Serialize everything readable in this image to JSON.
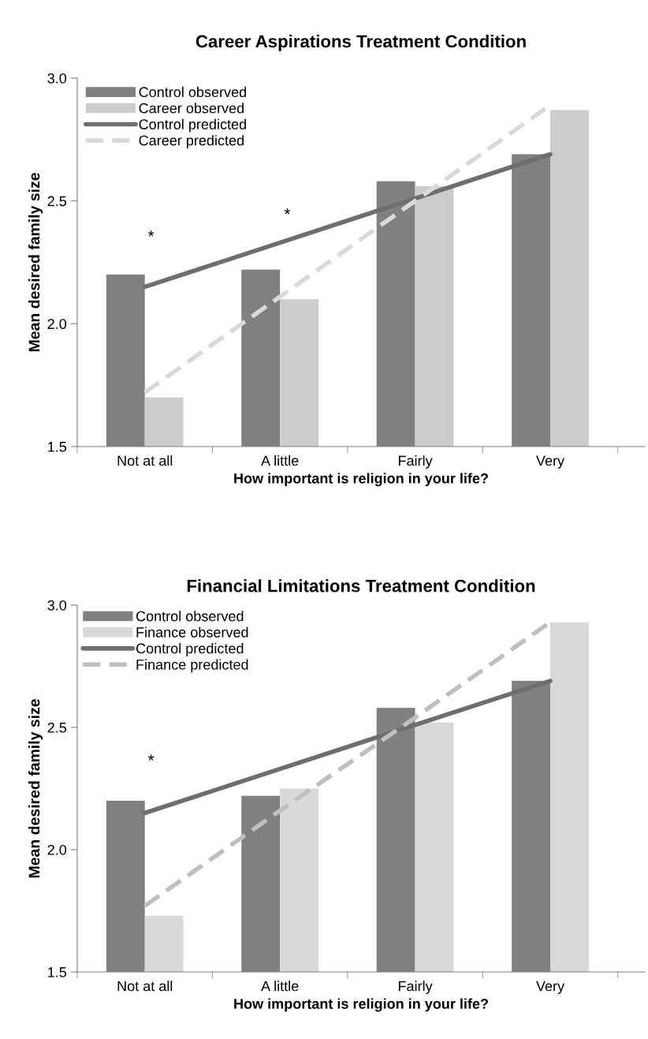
{
  "chart_data": [
    {
      "type": "bar",
      "title": "Career Aspirations Treatment Condition",
      "xlabel": "How important is religion in your life?",
      "ylabel": "Mean desired family size",
      "categories": [
        "Not at all",
        "A little",
        "Fairly",
        "Very"
      ],
      "ylim": [
        1.5,
        3.0
      ],
      "yticks": [
        {
          "value": 1.5,
          "label": "1.5"
        },
        {
          "value": 2.0,
          "label": "2.0"
        },
        {
          "value": 2.5,
          "label": "2.5"
        },
        {
          "value": 3.0,
          "label": "3.0"
        }
      ],
      "grid": false,
      "legend": "top left",
      "series": [
        {
          "name": "Control observed",
          "color": "#808080",
          "values": [
            2.2,
            2.22,
            2.58,
            2.69
          ]
        },
        {
          "name": "Career observed",
          "color": "#cccccc",
          "values": [
            1.7,
            2.1,
            2.56,
            2.87
          ]
        },
        {
          "name": "Control predicted",
          "type": "line",
          "color": "#6e6e6e",
          "line_style": "solid",
          "values": [
            2.15,
            2.33,
            2.51,
            2.69
          ]
        },
        {
          "name": "Career predicted",
          "type": "line",
          "color": "#d9d9d9",
          "line_style": "dashed",
          "values": [
            1.72,
            2.11,
            2.5,
            2.89
          ]
        }
      ],
      "annotations": [
        "*",
        "*"
      ]
    },
    {
      "type": "bar",
      "title": "Financial Limitations Treatment Condition",
      "xlabel": "How important is religion in your life?",
      "ylabel": "Mean desired family size",
      "categories": [
        "Not at all",
        "A little",
        "Fairly",
        "Very"
      ],
      "ylim": [
        1.5,
        3.0
      ],
      "yticks": [
        {
          "value": 1.5,
          "label": "1.5"
        },
        {
          "value": 2.0,
          "label": "2.0"
        },
        {
          "value": 2.5,
          "label": "2.5"
        },
        {
          "value": 3.0,
          "label": "3.0"
        }
      ],
      "grid": false,
      "legend": "top left",
      "series": [
        {
          "name": "Control observed",
          "color": "#808080",
          "values": [
            2.2,
            2.22,
            2.58,
            2.69
          ]
        },
        {
          "name": "Finance observed",
          "color": "#d9d9d9",
          "values": [
            1.73,
            2.25,
            2.52,
            2.93
          ]
        },
        {
          "name": "Control predicted",
          "type": "line",
          "color": "#6e6e6e",
          "line_style": "solid",
          "values": [
            2.15,
            2.33,
            2.51,
            2.69
          ]
        },
        {
          "name": "Finance predicted",
          "type": "line",
          "color": "#bfbfbf",
          "line_style": "dashed",
          "values": [
            1.77,
            2.16,
            2.54,
            2.93
          ]
        }
      ],
      "annotations": [
        "*"
      ]
    }
  ]
}
